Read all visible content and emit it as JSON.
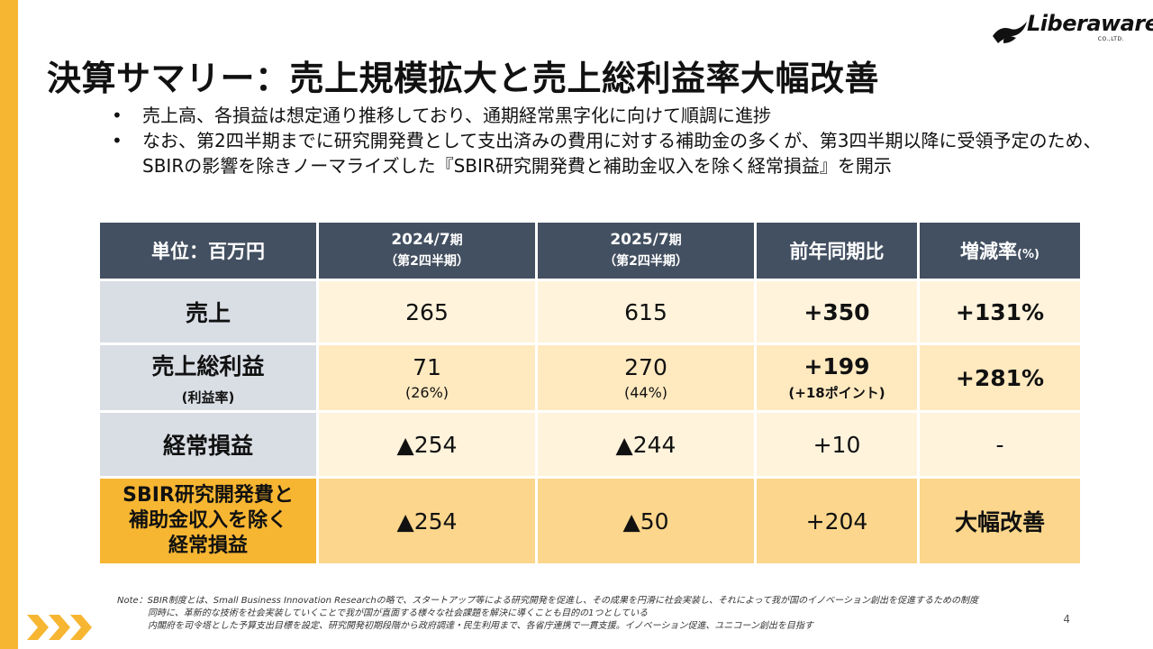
{
  "colors": {
    "accent": "#f7b632",
    "header": "#435061",
    "label": "#d9dee5",
    "highlight": "#fbd68c",
    "positive": "#d21f1f"
  },
  "logo": {
    "text": "Liberaware",
    "sub": "CO.,LTD."
  },
  "title": "決算サマリー：売上規模拡大と売上総利益率大幅改善",
  "bullets": [
    {
      "mark": "•",
      "text": "売上高、各損益は想定通り推移しており、通期経常黒字化に向けて順調に進捗"
    },
    {
      "mark": "•",
      "text": "なお、第2四半期までに研究開発費として支出済みの費用に対する補助金の多くが、第3四半期以降に受領予定のため、SBIRの影響を除きノーマライズした『SBIR研究開発費と補助金収入を除く経常損益』を開示"
    }
  ],
  "table": {
    "headers": {
      "unit": "単位：百万円",
      "period1": {
        "year": "2024/7",
        "suffix": "期",
        "sub": "（第2四半期）"
      },
      "period2": {
        "year": "2025/7",
        "suffix": "期",
        "sub": "（第2四半期）"
      },
      "yoy": "前年同期比",
      "rate": "増減率",
      "rate_unit": "(%)"
    },
    "rows": [
      {
        "label": "売上",
        "v1": "265",
        "v2": "615",
        "yoy": "+350",
        "rate": "+131%"
      },
      {
        "label": "売上総利益",
        "label_sub": "(利益率)",
        "v1": "71",
        "v1_sub": "(26%)",
        "v2": "270",
        "v2_sub": "(44%)",
        "yoy": "+199",
        "yoy_sub": "(+18ポイント)",
        "rate": "+281%"
      },
      {
        "label": "経常損益",
        "v1": "▲254",
        "v2": "▲244",
        "yoy": "+10",
        "rate": "-"
      },
      {
        "label_lines": [
          "SBIR研究開発費と",
          "補助金収入を除く",
          "経常損益"
        ],
        "v1": "▲254",
        "v2": "▲50",
        "yoy": "+204",
        "rate": "大幅改善"
      }
    ]
  },
  "note": {
    "prefix": "Note：",
    "lines": [
      "SBIR制度とは、Small Business Innovation Researchの略で、スタートアップ等による研究開発を促進し、その成果を円滑に社会実装し、それによって我が国のイノベーション創出を促進するための制度",
      "同時に、革新的な技術を社会実装していくことで我が国が直面する様々な社会課題を解決に導くことも目的の1つとしている",
      "内閣府を司令塔とした予算支出目標を設定、研究開発初期段階から政府調達・民生利用まで、各省庁連携で一貫支援。イノベーション促進、ユニコーン創出を目指す"
    ]
  },
  "page_number": "4"
}
